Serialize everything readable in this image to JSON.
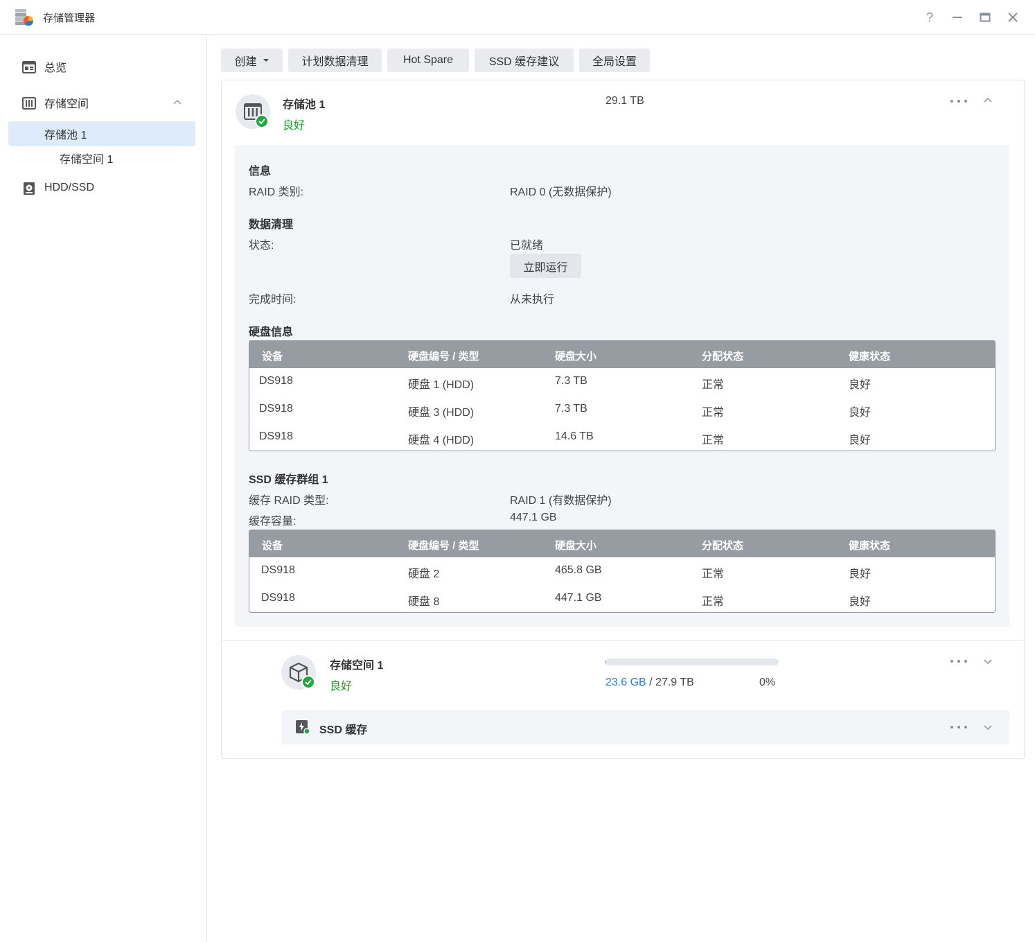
{
  "window": {
    "title": "存储管理器",
    "help_icon": "question-icon",
    "minimize_icon": "minimize-icon",
    "maximize_icon": "maximize-icon",
    "close_icon": "close-icon"
  },
  "sidebar": {
    "items": [
      {
        "label": "总览",
        "icon": "overview-icon"
      },
      {
        "label": "存储空间",
        "icon": "storage-icon"
      },
      {
        "label": "存储池 1"
      },
      {
        "label": "存储空间 1"
      },
      {
        "label": "HDD/SSD",
        "icon": "disk-icon"
      }
    ]
  },
  "toolbar": {
    "create": "创建",
    "scrub": "计划数据清理",
    "hotspare": "Hot Spare",
    "ssd_advice": "SSD 缓存建议",
    "global": "全局设置"
  },
  "pool": {
    "name": "存储池 1",
    "status": "良好",
    "size": "29.1 TB",
    "info_heading": "信息",
    "raid_label": "RAID 类别:",
    "raid_value": "RAID 0 (无数据保护)",
    "scrub_heading": "数据清理",
    "scrub_status_label": "状态:",
    "scrub_status_value": "已就绪",
    "run_now": "立即运行",
    "scrub_time_label": "完成时间:",
    "scrub_time_value": "从未执行",
    "disk_heading": "硬盘信息",
    "columns": [
      "设备",
      "硬盘编号 / 类型",
      "硬盘大小",
      "分配状态",
      "健康状态"
    ],
    "disks": [
      {
        "device": "DS918",
        "id": "硬盘 1 (HDD)",
        "size": "7.3 TB",
        "alloc": "正常",
        "health": "良好"
      },
      {
        "device": "DS918",
        "id": "硬盘 3 (HDD)",
        "size": "7.3 TB",
        "alloc": "正常",
        "health": "良好"
      },
      {
        "device": "DS918",
        "id": "硬盘 4 (HDD)",
        "size": "14.6 TB",
        "alloc": "正常",
        "health": "良好"
      }
    ],
    "cache_heading": "SSD 缓存群组 1",
    "cache_raid_label": "缓存 RAID 类型:",
    "cache_raid_value": "RAID 1 (有数据保护)",
    "cache_cap_label": "缓存容量:",
    "cache_cap_value": "447.1 GB",
    "cache_disks": [
      {
        "device": "DS918",
        "id": "硬盘 2",
        "size": "465.8 GB",
        "alloc": "正常",
        "health": "良好"
      },
      {
        "device": "DS918",
        "id": "硬盘 8",
        "size": "447.1 GB",
        "alloc": "正常",
        "health": "良好"
      }
    ]
  },
  "volume": {
    "name": "存储空间 1",
    "status": "良好",
    "used": "23.6 GB",
    "sep": "/",
    "total": "27.9 TB",
    "percent": "0%",
    "usage_fraction": 0.001
  },
  "ssd_cache": {
    "label": "SSD 缓存"
  },
  "colors": {
    "accent": "#2a7ad4",
    "good": "#1c9a2e",
    "table_header": "#979ca3",
    "selected": "#ddebfa"
  }
}
